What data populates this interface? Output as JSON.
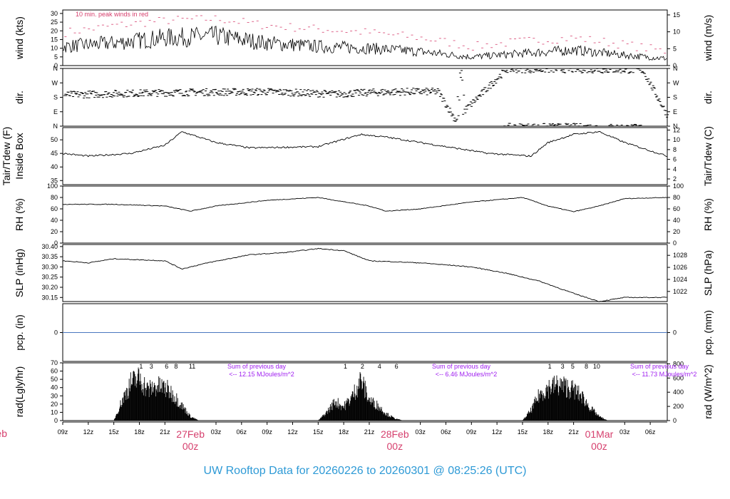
{
  "title": "UW Rooftop Data for 20260226  to  20260301 @ 08:25:26  (UTC)",
  "x_axis": {
    "hour_labels": [
      "09z",
      "12z",
      "15z",
      "18z",
      "21z",
      "03z",
      "06z",
      "09z",
      "12z",
      "15z",
      "18z",
      "21z",
      "03z",
      "06z",
      "09z",
      "12z",
      "15z",
      "18z",
      "21z",
      "03z",
      "06z"
    ],
    "day_labels": [
      {
        "date": "27Feb",
        "hour": "00z"
      },
      {
        "date": "28Feb",
        "hour": "00z"
      },
      {
        "date": "01Mar",
        "hour": "00z"
      }
    ],
    "left_cut_label": "eb"
  },
  "chart_data": [
    {
      "type": "line",
      "panel": "wind",
      "ylabel_left": "wind (kts)",
      "ylabel_right": "wind (m/s)",
      "left_ticks": [
        "0",
        "5",
        "10",
        "15",
        "20",
        "25",
        "30"
      ],
      "right_ticks": [
        "0",
        "5",
        "10",
        "15"
      ],
      "ylim": [
        0,
        32
      ],
      "annotation": "10 min. peak winds in red",
      "series": [
        {
          "name": "10 min. peak winds",
          "color": "#d6406e",
          "style": "dashes",
          "x": [
            0,
            6,
            12,
            18,
            24,
            30,
            36,
            42,
            48,
            54,
            60,
            66,
            71
          ],
          "values": [
            19,
            23,
            26,
            27,
            23,
            21,
            19,
            16,
            11,
            14,
            16,
            12,
            8
          ]
        },
        {
          "name": "",
          "color": "#000000",
          "style": "line",
          "x": [
            0,
            6,
            12,
            18,
            24,
            30,
            36,
            42,
            48,
            54,
            60,
            66,
            71
          ],
          "values": [
            11,
            13,
            16,
            17,
            13,
            11,
            10,
            8,
            5,
            7,
            9,
            6,
            4
          ]
        }
      ]
    },
    {
      "type": "scatter",
      "panel": "dir",
      "ylabel_left": "dir.",
      "ylabel_right": "dir.",
      "left_ticks": [
        "N",
        "E",
        "S",
        "W",
        "N"
      ],
      "right_ticks": [
        "N",
        "E",
        "S",
        "W",
        "N"
      ],
      "ylim": [
        0,
        360
      ],
      "x": [
        0,
        8,
        16,
        24,
        32,
        36,
        40,
        44,
        46,
        52,
        60,
        68,
        71
      ],
      "values": [
        195,
        205,
        212,
        215,
        200,
        210,
        215,
        215,
        40,
        355,
        355,
        350,
        60
      ]
    },
    {
      "type": "line",
      "panel": "temp",
      "ylabel_left": "Tair/Tdew (F)",
      "ylabel_left2": "Inside Box",
      "ylabel_right": "Tair/Tdew (C)",
      "left_ticks": [
        "35",
        "40",
        "45",
        "50"
      ],
      "right_ticks": [
        "2",
        "4",
        "6",
        "8",
        "10",
        "12"
      ],
      "ylim": [
        33.5,
        54.5
      ],
      "x": [
        0,
        3,
        8,
        12,
        14,
        18,
        22,
        30,
        35,
        38,
        42,
        46,
        50,
        55,
        57,
        60,
        63,
        66,
        69,
        71
      ],
      "values": [
        45,
        44,
        45,
        48,
        53,
        49,
        47,
        47.5,
        52,
        51,
        49,
        47,
        45,
        44,
        49,
        52,
        53,
        49,
        46,
        44
      ]
    },
    {
      "type": "line",
      "panel": "rh",
      "ylabel_left": "RH (%)",
      "ylabel_right": "RH (%)",
      "left_ticks": [
        "0",
        "20",
        "40",
        "60",
        "80",
        "100"
      ],
      "right_ticks": [
        "0",
        "20",
        "40",
        "60",
        "80",
        "100"
      ],
      "ylim": [
        0,
        100
      ],
      "x": [
        0,
        6,
        12,
        15,
        18,
        24,
        30,
        36,
        38,
        42,
        48,
        54,
        57,
        60,
        63,
        66,
        71
      ],
      "values": [
        68,
        68,
        65,
        56,
        65,
        75,
        80,
        65,
        56,
        60,
        72,
        80,
        65,
        55,
        65,
        78,
        80
      ]
    },
    {
      "type": "line",
      "panel": "slp",
      "ylabel_left": "SLP (inHg)",
      "ylabel_right": "SLP (hPa)",
      "left_ticks": [
        "30.15",
        "30.20",
        "30.25",
        "30.30",
        "30.35",
        "30.40"
      ],
      "right_ticks": [
        "1022",
        "1024",
        "1026",
        "1028"
      ],
      "ylim": [
        30.13,
        30.41
      ],
      "x": [
        0,
        3,
        6,
        12,
        14,
        17,
        22,
        26,
        30,
        33,
        36,
        42,
        48,
        52,
        56,
        60,
        63,
        66,
        71
      ],
      "values": [
        30.33,
        30.32,
        30.34,
        30.33,
        30.29,
        30.32,
        30.36,
        30.37,
        30.39,
        30.38,
        30.33,
        30.32,
        30.3,
        30.27,
        30.23,
        30.17,
        30.13,
        30.15,
        30.15
      ]
    },
    {
      "type": "line",
      "panel": "pcp",
      "ylabel_left": "pcp. (in)",
      "ylabel_right": "pcp. (mm)",
      "left_ticks": [
        "0"
      ],
      "right_ticks": [
        "0"
      ],
      "ylim": [
        -1,
        1
      ],
      "x": [
        0,
        71
      ],
      "values": [
        0,
        0
      ]
    },
    {
      "type": "area",
      "panel": "rad",
      "ylabel_left": "rad(Lgly/hr)",
      "ylabel_right": "rad (W/m^2)",
      "left_ticks": [
        "0",
        "10",
        "20",
        "30",
        "40",
        "50",
        "60",
        "70"
      ],
      "right_ticks": [
        "0",
        "200",
        "400",
        "600",
        "800"
      ],
      "ylim": [
        0,
        70
      ],
      "hour_marks": [
        [
          "1",
          "3",
          "6",
          "8",
          "11"
        ],
        [
          "1",
          "2",
          "4",
          "6"
        ],
        [
          "1",
          "3",
          "5",
          "8",
          "10"
        ]
      ],
      "daily_notes": [
        {
          "title": "Sum of previous day",
          "value": "<-- 12.15 MJoules/m^2"
        },
        {
          "title": "Sum of previous day",
          "value": "<-- 6.46 MJoules/m^2"
        },
        {
          "title": "Sum of previous day",
          "value": "<-- 11.73 MJoules/m^2"
        }
      ],
      "x": [
        6,
        7,
        8,
        9,
        10,
        11,
        12,
        13,
        14,
        15,
        16,
        30,
        31,
        32,
        33,
        34,
        35,
        36,
        37,
        38,
        39,
        40,
        54,
        55,
        56,
        57,
        58,
        59,
        60,
        61,
        62,
        63,
        64
      ],
      "values": [
        0,
        30,
        55,
        62,
        45,
        50,
        48,
        38,
        22,
        6,
        0,
        0,
        12,
        28,
        20,
        35,
        60,
        30,
        22,
        10,
        3,
        0,
        0,
        15,
        38,
        48,
        52,
        50,
        45,
        35,
        18,
        6,
        0
      ]
    }
  ]
}
